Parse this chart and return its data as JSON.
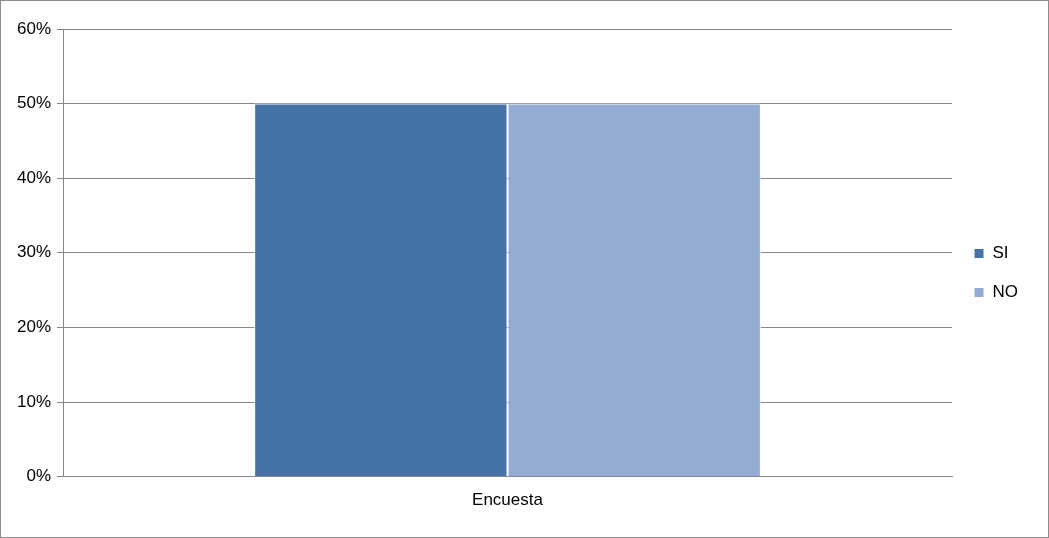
{
  "chart_data": {
    "type": "bar",
    "categories": [
      "Encuesta"
    ],
    "series": [
      {
        "name": "SI",
        "color": "#4573a7",
        "values": [
          50
        ]
      },
      {
        "name": "NO",
        "color": "#94abd3",
        "values": [
          50
        ]
      }
    ],
    "ylim": [
      0,
      60
    ],
    "yticks": [
      {
        "value": 0,
        "label": "0%"
      },
      {
        "value": 10,
        "label": "10%"
      },
      {
        "value": 20,
        "label": "20%"
      },
      {
        "value": 30,
        "label": "30%"
      },
      {
        "value": 40,
        "label": "40%"
      },
      {
        "value": 50,
        "label": "50%"
      },
      {
        "value": 60,
        "label": "60%"
      }
    ],
    "grid": "y",
    "legend": "right"
  }
}
